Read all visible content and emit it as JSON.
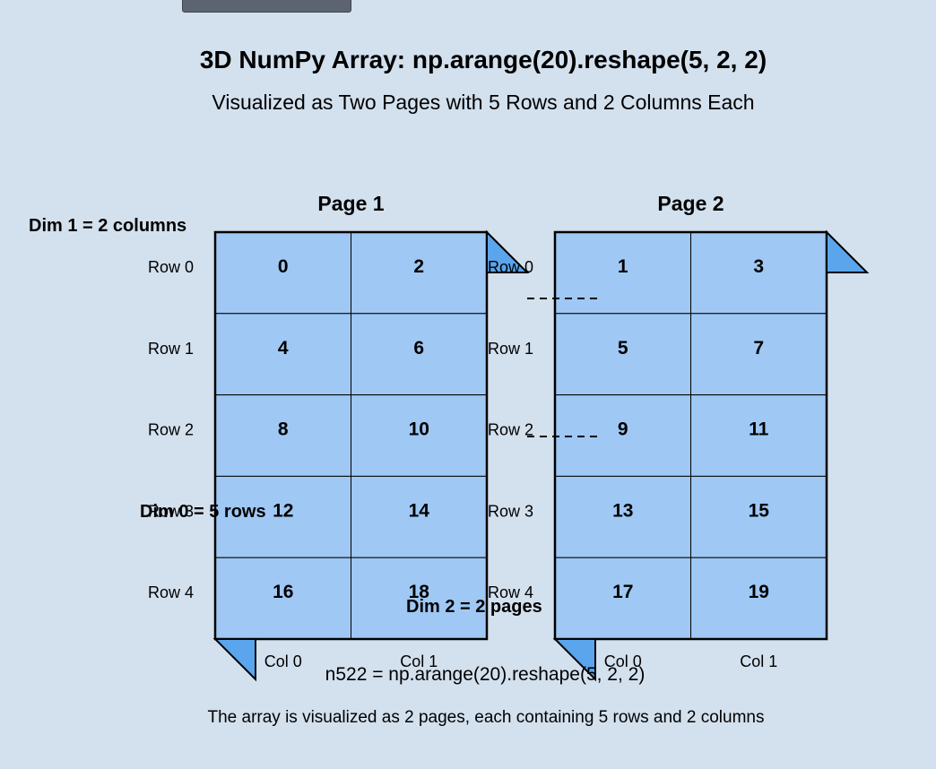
{
  "title": "3D NumPy Array: np.arange(20).reshape(5, 2, 2)",
  "subtitle": "Visualized as Two Pages with 5 Rows and 2 Columns Each",
  "pages": [
    {
      "label": "Page 1",
      "rows": [
        [
          "0",
          "2"
        ],
        [
          "4",
          "6"
        ],
        [
          "8",
          "10"
        ],
        [
          "12",
          "14"
        ],
        [
          "16",
          "18"
        ]
      ]
    },
    {
      "label": "Page 2",
      "rows": [
        [
          "1",
          "3"
        ],
        [
          "5",
          "7"
        ],
        [
          "9",
          "11"
        ],
        [
          "13",
          "15"
        ],
        [
          "17",
          "19"
        ]
      ]
    }
  ],
  "row_labels": [
    "Row 0",
    "Row 1",
    "Row 2",
    "Row 3",
    "Row 4"
  ],
  "col_labels": [
    "Col 0",
    "Col 1"
  ],
  "dims": {
    "dim0": "Dim 0 = 5 rows",
    "dim1": "Dim 1 = 2 columns",
    "dim2": "Dim 2 = 2 pages"
  },
  "code": "n522 = np.arange(20).reshape(5, 2, 2)",
  "caption": "The array is visualized as 2 pages, each containing 5 rows and 2 columns",
  "colors": {
    "background": "#d3e0ee",
    "cell_fill": "#9fc8f4",
    "fold_fill": "#5aa5ec",
    "stroke": "#000000"
  }
}
